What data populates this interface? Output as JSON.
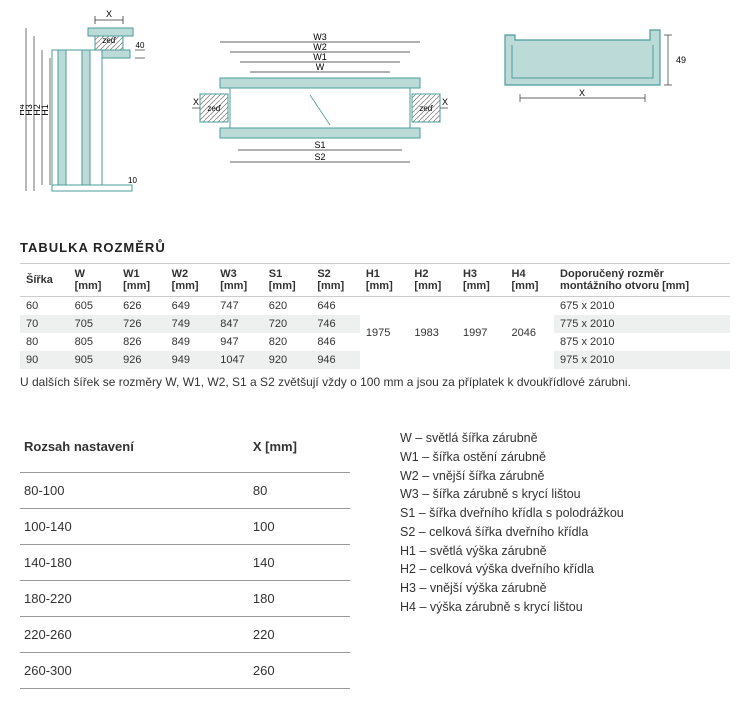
{
  "diagrams": {
    "label_zed": "zeď",
    "side": {
      "X": "X",
      "H1": "H1",
      "H2": "H2",
      "H3": "H3",
      "H4": "H4",
      "v40": "40",
      "v10": "10",
      "stroke": "#4a9e98",
      "fill": "#bcdad7"
    },
    "front": {
      "W": "W",
      "W1": "W1",
      "W2": "W2",
      "W3": "W3",
      "S1": "S1",
      "S2": "S2",
      "X": "X"
    },
    "profile": {
      "X": "X",
      "v49": "49"
    }
  },
  "dimTable": {
    "title": "TABULKA ROZMĚRŮ",
    "headers": [
      {
        "l1": "Šířka",
        "l2": ""
      },
      {
        "l1": "W",
        "l2": "[mm]"
      },
      {
        "l1": "W1",
        "l2": "[mm]"
      },
      {
        "l1": "W2",
        "l2": "[mm]"
      },
      {
        "l1": "W3",
        "l2": "[mm]"
      },
      {
        "l1": "S1",
        "l2": "[mm]"
      },
      {
        "l1": "S2",
        "l2": "[mm]"
      },
      {
        "l1": "H1",
        "l2": "[mm]"
      },
      {
        "l1": "H2",
        "l2": "[mm]"
      },
      {
        "l1": "H3",
        "l2": "[mm]"
      },
      {
        "l1": "H4",
        "l2": "[mm]"
      },
      {
        "l1": "Doporučený rozměr",
        "l2": "montážního otvoru [mm]"
      }
    ],
    "rows": [
      [
        "60",
        "605",
        "626",
        "649",
        "747",
        "620",
        "646",
        "",
        "",
        "",
        "",
        "675 x 2010"
      ],
      [
        "70",
        "705",
        "726",
        "749",
        "847",
        "720",
        "746",
        "",
        "",
        "",
        "",
        "775 x 2010"
      ],
      [
        "80",
        "805",
        "826",
        "849",
        "947",
        "820",
        "846",
        "",
        "",
        "",
        "",
        "875 x 2010"
      ],
      [
        "90",
        "905",
        "926",
        "949",
        "1047",
        "920",
        "946",
        "",
        "",
        "",
        "",
        "975 x 2010"
      ]
    ],
    "merged": {
      "H1": "1975",
      "H2": "1983",
      "H3": "1997",
      "H4": "2046"
    },
    "note": "U dalších šířek se rozměry W, W1, W2, S1 a S2 zvětšují vždy o 100 mm a jsou za příplatek k dvoukřídlové zárubni."
  },
  "rangeTable": {
    "headers": [
      "Rozsah nastavení",
      "X [mm]"
    ],
    "rows": [
      [
        "80-100",
        "80"
      ],
      [
        "100-140",
        "100"
      ],
      [
        "140-180",
        "140"
      ],
      [
        "180-220",
        "180"
      ],
      [
        "220-260",
        "220"
      ],
      [
        "260-300",
        "260"
      ]
    ]
  },
  "legend": [
    "W – světlá šířka zárubně",
    "W1 – šířka ostění zárubně",
    "W2 – vnější šířka zárubně",
    "W3 – šířka zárubně s krycí lištou",
    "S1 – šířka dveřního křídla s polodrážkou",
    "S2 – celková šířka dveřního křídla",
    "H1 – světlá výška zárubně",
    "H2 – celková výška dveřního křídla",
    "H3 – vnější výška zárubně",
    "H4 – výška zárubně s krycí lištou"
  ]
}
